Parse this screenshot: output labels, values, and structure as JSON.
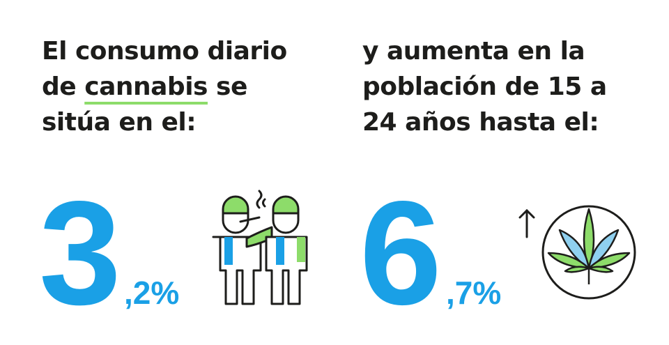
{
  "left": {
    "line1": "El consumo diario",
    "line2_start": "de",
    "line2_highlight": "cannabis",
    "line2_end": "se",
    "line3": "sitúa en el:",
    "number_int": "3",
    "number_dec": ",2%"
  },
  "right": {
    "lines": [
      "y aumenta en la",
      "población de 15 a",
      "24 años hasta el:"
    ],
    "number_int": "6",
    "number_dec": ",7%"
  }
}
